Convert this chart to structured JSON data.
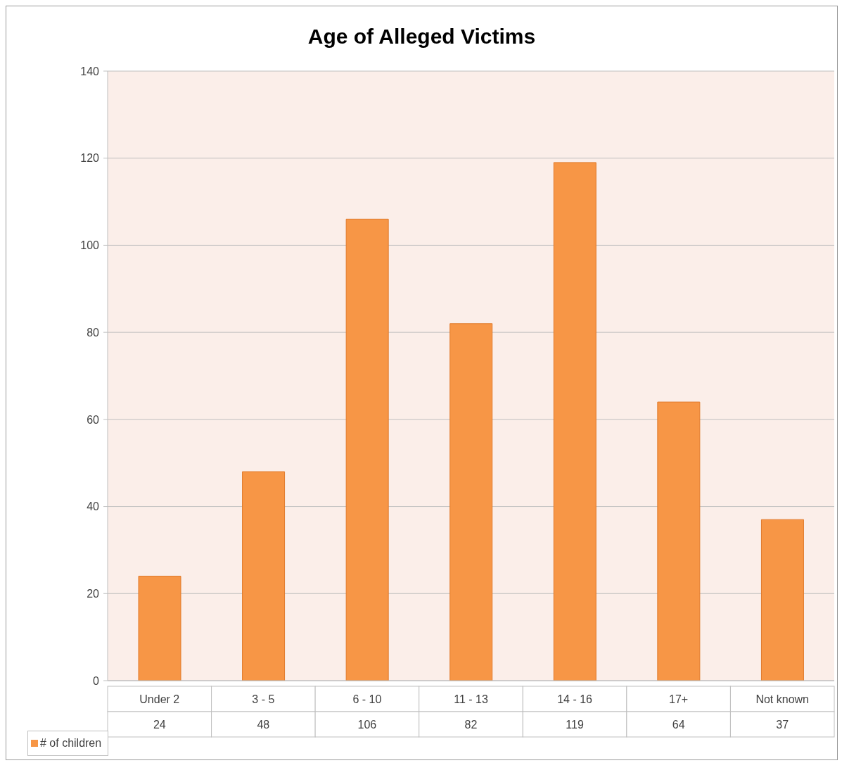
{
  "chart_data": {
    "type": "bar",
    "title": "Age of Alleged Victims",
    "categories": [
      "Under 2",
      "3 - 5",
      "6 - 10",
      "11 - 13",
      "14 - 16",
      "17+",
      "Not known"
    ],
    "series": [
      {
        "name": "# of children",
        "color": "#f79646",
        "values": [
          24,
          48,
          106,
          82,
          119,
          64,
          37
        ]
      }
    ],
    "ylim": [
      0,
      140
    ],
    "yticks": [
      0,
      20,
      40,
      60,
      80,
      100,
      120,
      140
    ],
    "grid": "y",
    "legend": "bottom",
    "data_labels": true
  }
}
